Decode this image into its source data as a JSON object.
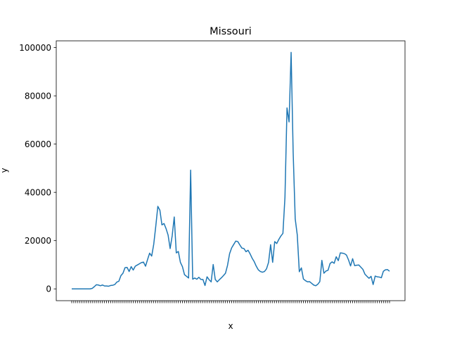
{
  "chart_data": {
    "type": "line",
    "title": "Missouri",
    "xlabel": "x",
    "ylabel": "y",
    "grid": false,
    "ylim": [
      -4895,
      102795
    ],
    "yticks": [
      0,
      20000,
      40000,
      60000,
      80000,
      100000
    ],
    "ytick_labels": [
      "0",
      "20000",
      "40000",
      "60000",
      "80000",
      "100000"
    ],
    "series": [
      {
        "color": "#1f77b4",
        "values": [
          0,
          0,
          0,
          0,
          0,
          0,
          0,
          0,
          0,
          0,
          200,
          900,
          1700,
          1600,
          1300,
          1600,
          1200,
          1200,
          1100,
          1400,
          1500,
          1800,
          2800,
          3200,
          5500,
          6500,
          8800,
          8900,
          7200,
          9200,
          7800,
          9400,
          9900,
          10400,
          10900,
          11100,
          9400,
          12200,
          14800,
          13600,
          18500,
          26000,
          34200,
          32600,
          26500,
          27100,
          25000,
          22300,
          16700,
          22000,
          29800,
          14900,
          15500,
          11000,
          9200,
          5900,
          5200,
          4500,
          49200,
          4000,
          4500,
          4000,
          4800,
          3900,
          3900,
          1400,
          5000,
          3800,
          2900,
          10100,
          3900,
          2900,
          3800,
          4600,
          5500,
          6500,
          9800,
          14600,
          17000,
          18400,
          19800,
          19600,
          18200,
          16900,
          16700,
          15400,
          16000,
          14500,
          12700,
          11300,
          9400,
          7900,
          7200,
          6900,
          7200,
          8300,
          11000,
          18300,
          11000,
          19600,
          18800,
          20500,
          21900,
          23000,
          38000,
          75000,
          69200,
          98000,
          56600,
          29000,
          22400,
          7100,
          8700,
          4100,
          3400,
          2900,
          3000,
          2300,
          1600,
          1300,
          1900,
          3000,
          11800,
          6500,
          7400,
          7700,
          10500,
          11200,
          10600,
          13300,
          11700,
          14900,
          14800,
          14600,
          14000,
          12000,
          9500,
          12500,
          9600,
          9800,
          9900,
          9000,
          8100,
          6100,
          5200,
          4400,
          5200,
          1800,
          5300,
          5000,
          4900,
          4600,
          7300,
          7900,
          8000,
          7300
        ]
      }
    ]
  }
}
